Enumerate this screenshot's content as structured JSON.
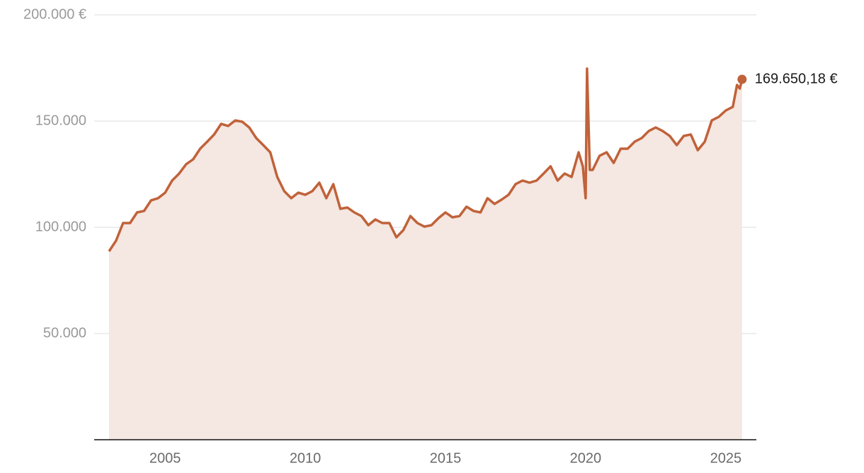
{
  "chart_data": {
    "type": "area",
    "x": [
      2003,
      2003.25,
      2003.5,
      2003.75,
      2004,
      2004.25,
      2004.5,
      2004.75,
      2005,
      2005.25,
      2005.5,
      2005.75,
      2006,
      2006.25,
      2006.5,
      2006.75,
      2007,
      2007.25,
      2007.5,
      2007.75,
      2008,
      2008.25,
      2008.5,
      2008.75,
      2009,
      2009.25,
      2009.5,
      2009.75,
      2010,
      2010.25,
      2010.5,
      2010.75,
      2011,
      2011.25,
      2011.5,
      2011.75,
      2012,
      2012.25,
      2012.5,
      2012.75,
      2013,
      2013.25,
      2013.5,
      2013.75,
      2014,
      2014.25,
      2014.5,
      2014.75,
      2015,
      2015.25,
      2015.5,
      2015.75,
      2016,
      2016.25,
      2016.5,
      2016.75,
      2017,
      2017.25,
      2017.5,
      2017.75,
      2018,
      2018.25,
      2018.5,
      2018.75,
      2019,
      2019.25,
      2019.5,
      2019.75,
      2019.9,
      2020,
      2020.05,
      2020.15,
      2020.25,
      2020.5,
      2020.75,
      2021,
      2021.25,
      2021.5,
      2021.75,
      2022,
      2022.25,
      2022.5,
      2022.75,
      2023,
      2023.25,
      2023.5,
      2023.75,
      2024,
      2024.25,
      2024.5,
      2024.75,
      2025,
      2025.25,
      2025.4,
      2025.5,
      2025.58
    ],
    "values": [
      88700,
      93700,
      102000,
      102000,
      107000,
      107700,
      112700,
      113700,
      116300,
      122000,
      125300,
      129700,
      132000,
      137000,
      140300,
      143700,
      148700,
      147700,
      150300,
      149700,
      147000,
      142000,
      138700,
      135300,
      123700,
      117000,
      113700,
      116300,
      115300,
      117000,
      121000,
      113700,
      120300,
      108700,
      109300,
      107000,
      105300,
      101000,
      103700,
      102000,
      102000,
      95300,
      98700,
      105300,
      102000,
      100300,
      101000,
      104300,
      107000,
      104700,
      105300,
      109700,
      107700,
      107000,
      113700,
      111000,
      113000,
      115300,
      120300,
      122000,
      121000,
      122000,
      125300,
      128700,
      122000,
      125300,
      123700,
      135300,
      128700,
      113700,
      174700,
      127000,
      127000,
      133700,
      135300,
      130300,
      137000,
      137000,
      140300,
      142000,
      145300,
      147000,
      145300,
      143000,
      138700,
      143000,
      143700,
      136300,
      140300,
      150300,
      152000,
      155000,
      156700,
      167000,
      165300,
      169650.18
    ],
    "value_labels": [
      null,
      null,
      null,
      null,
      null,
      null,
      null,
      null,
      null,
      null,
      null,
      null,
      null,
      null,
      null,
      null,
      null,
      null,
      null,
      null,
      null,
      null,
      null,
      null,
      null,
      null,
      null,
      null,
      null,
      null,
      null,
      null,
      null,
      null,
      null,
      null,
      null,
      null,
      null,
      null,
      null,
      null,
      null,
      null,
      null,
      null,
      null,
      null,
      null,
      null,
      null,
      null,
      null,
      null,
      null,
      null,
      null,
      null,
      null,
      null,
      null,
      null,
      null,
      null,
      null,
      null,
      null,
      null,
      null,
      null,
      null,
      null,
      null,
      null,
      null,
      null,
      null,
      null,
      null,
      null,
      null,
      null,
      null,
      null,
      null,
      null,
      null,
      null,
      null,
      null,
      null,
      null,
      null,
      null,
      null,
      "169.650,18 €"
    ],
    "color": "#c0623a",
    "fill_color": "#f5e7e1",
    "xlim": [
      2002.47,
      2026.09
    ],
    "ylim": [
      0,
      200000
    ],
    "xticks": [
      2005,
      2010,
      2015,
      2020,
      2025
    ],
    "yticks": [
      {
        "value": 50000,
        "label": "50.000"
      },
      {
        "value": 100000,
        "label": "100.000"
      },
      {
        "value": 150000,
        "label": "150.000"
      },
      {
        "value": 200000,
        "label": "200.000 €"
      }
    ],
    "grid": true
  }
}
